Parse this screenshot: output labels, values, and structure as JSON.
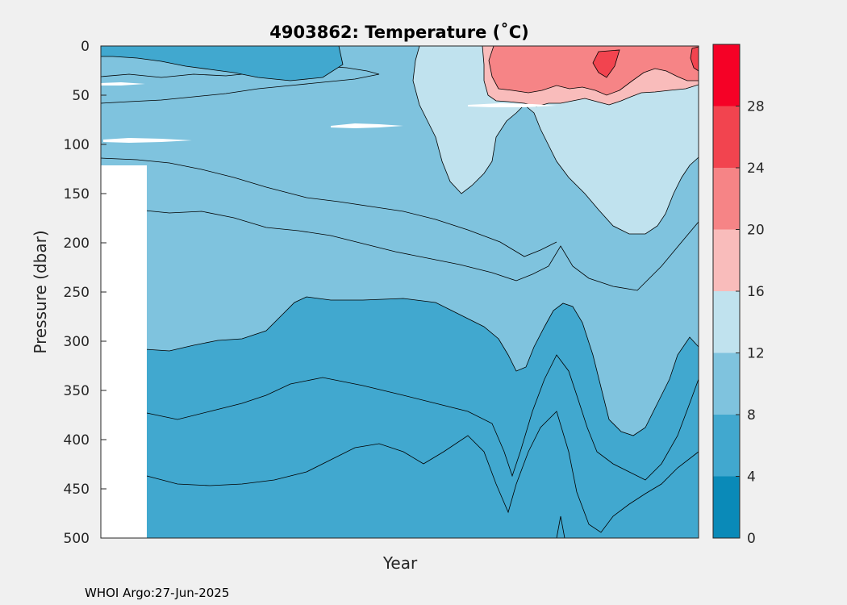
{
  "chart_data": {
    "type": "heatmap",
    "title": "4903862:  Temperature (˚C)",
    "xlabel": "Year",
    "ylabel": "Pressure (dbar)",
    "ylim": [
      0,
      500
    ],
    "y_reversed": true,
    "y_ticks": [
      "0",
      "50",
      "100",
      "150",
      "200",
      "250",
      "300",
      "350",
      "400",
      "450",
      "500"
    ],
    "colorbar": {
      "range": [
        0,
        32
      ],
      "tick_labels": [
        "0",
        "4",
        "8",
        "12",
        "16",
        "20",
        "24",
        "28"
      ],
      "levels": [
        {
          "min": 0,
          "max": 4,
          "color": "#0a8ab8"
        },
        {
          "min": 4,
          "max": 8,
          "color": "#41a8cf"
        },
        {
          "min": 8,
          "max": 12,
          "color": "#7fc3de"
        },
        {
          "min": 12,
          "max": 16,
          "color": "#c0e2ee"
        },
        {
          "min": 16,
          "max": 20,
          "color": "#f9bcbb"
        },
        {
          "min": 20,
          "max": 24,
          "color": "#f68486"
        },
        {
          "min": 24,
          "max": 28,
          "color": "#f2444f"
        },
        {
          "min": 28,
          "max": 32,
          "color": "#f50126"
        }
      ]
    },
    "footer": "WHOI Argo:27-Jun-2025"
  }
}
